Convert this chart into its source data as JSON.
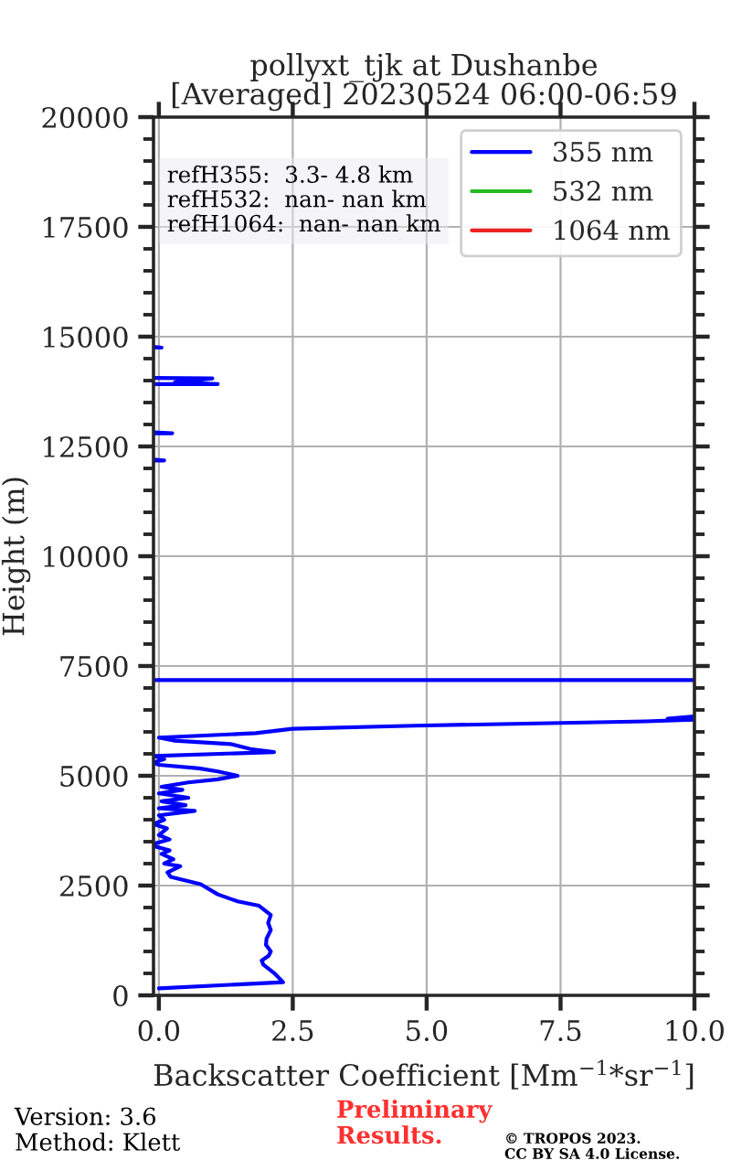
{
  "chart_data": {
    "type": "line",
    "title": "pollyxt_tjk at Dushanbe\n[Averaged] 20230524 06:00-06:59",
    "xlabel": "Backscatter Coefficient [Mm$^{−1}$*sr$^{−1}$]",
    "ylabel": "Height (m)",
    "xlim": [
      -0.1,
      10
    ],
    "xticks": [
      {
        "value": 0,
        "label": "0.0"
      },
      {
        "value": 2.5,
        "label": "2.5"
      },
      {
        "value": 5,
        "label": "5.0"
      },
      {
        "value": 7.5,
        "label": "7.5"
      },
      {
        "value": 10,
        "label": "10.0"
      }
    ],
    "ylim": [
      0,
      20000
    ],
    "yticks": [
      0,
      2500,
      5000,
      7500,
      10000,
      12500,
      15000,
      17500,
      20000
    ],
    "grid": true,
    "legend": "top right",
    "series": [
      {
        "name": "355 nm",
        "color": "#0000ff",
        "x": [
          0.0,
          2.32,
          2.15,
          1.95,
          1.92,
          2.05,
          2.09,
          2.0,
          2.01,
          2.09,
          2.04,
          2.09,
          1.87,
          1.47,
          1.1,
          0.78,
          0.22,
          0.16,
          0.4,
          0.1,
          0.27,
          0.05,
          0.2,
          -0.1,
          null,
          -0.1,
          0.2,
          0.0,
          0.15,
          -0.1,
          0.1,
          0.0,
          0.67,
          0.0,
          0.5,
          0.05,
          0.55,
          0.0,
          0.44,
          0.05,
          0.55,
          1.1,
          1.47,
          1.1,
          0.75,
          0.0,
          -0.1,
          0.1,
          -0.1,
          2.15,
          1.71,
          1.35,
          0.3,
          0.0,
          1.81,
          2.49,
          4.77,
          9.09,
          10.0,
          9.5,
          10.0,
          null,
          10.0,
          -0.1,
          null,
          -0.1,
          0.1,
          -0.1,
          null,
          -0.1,
          0.25,
          -0.1,
          null,
          -0.1,
          1.1,
          0.3,
          1.0,
          -0.1,
          null,
          -0.1,
          0.05,
          -0.1
        ],
        "values": [
          160,
          300,
          510,
          700,
          790,
          900,
          1000,
          1150,
          1290,
          1490,
          1650,
          1830,
          2040,
          2140,
          2300,
          2530,
          2700,
          2800,
          2940,
          3000,
          3100,
          3220,
          3300,
          3400,
          null,
          3450,
          3550,
          3650,
          3800,
          3900,
          4000,
          4100,
          4200,
          4260,
          4330,
          4420,
          4500,
          4600,
          4680,
          4750,
          4850,
          4920,
          5000,
          5100,
          5170,
          5250,
          5300,
          5380,
          5450,
          5540,
          5610,
          5720,
          5800,
          5870,
          5970,
          6070,
          6140,
          6240,
          6280,
          6300,
          6350,
          null,
          7180,
          7180,
          null,
          12180,
          12180,
          12200,
          null,
          12800,
          12800,
          12820,
          null,
          13920,
          13920,
          13960,
          14050,
          14060,
          null,
          14750,
          14750,
          14770
        ]
      },
      {
        "name": "532 nm",
        "color": "#22bb22"
      },
      {
        "name": "1064 nm",
        "color": "#ee2222"
      }
    ],
    "annotations": [
      "refH355:  3.3- 4.8 km\nrefH532:  nan- nan km\nrefH1064:  nan- nan km",
      "Version: 3.6\nMethod: Klett",
      "Preliminary\nResults.",
      "© TROPOS 2023.\nCC BY SA 4.0 License."
    ]
  }
}
